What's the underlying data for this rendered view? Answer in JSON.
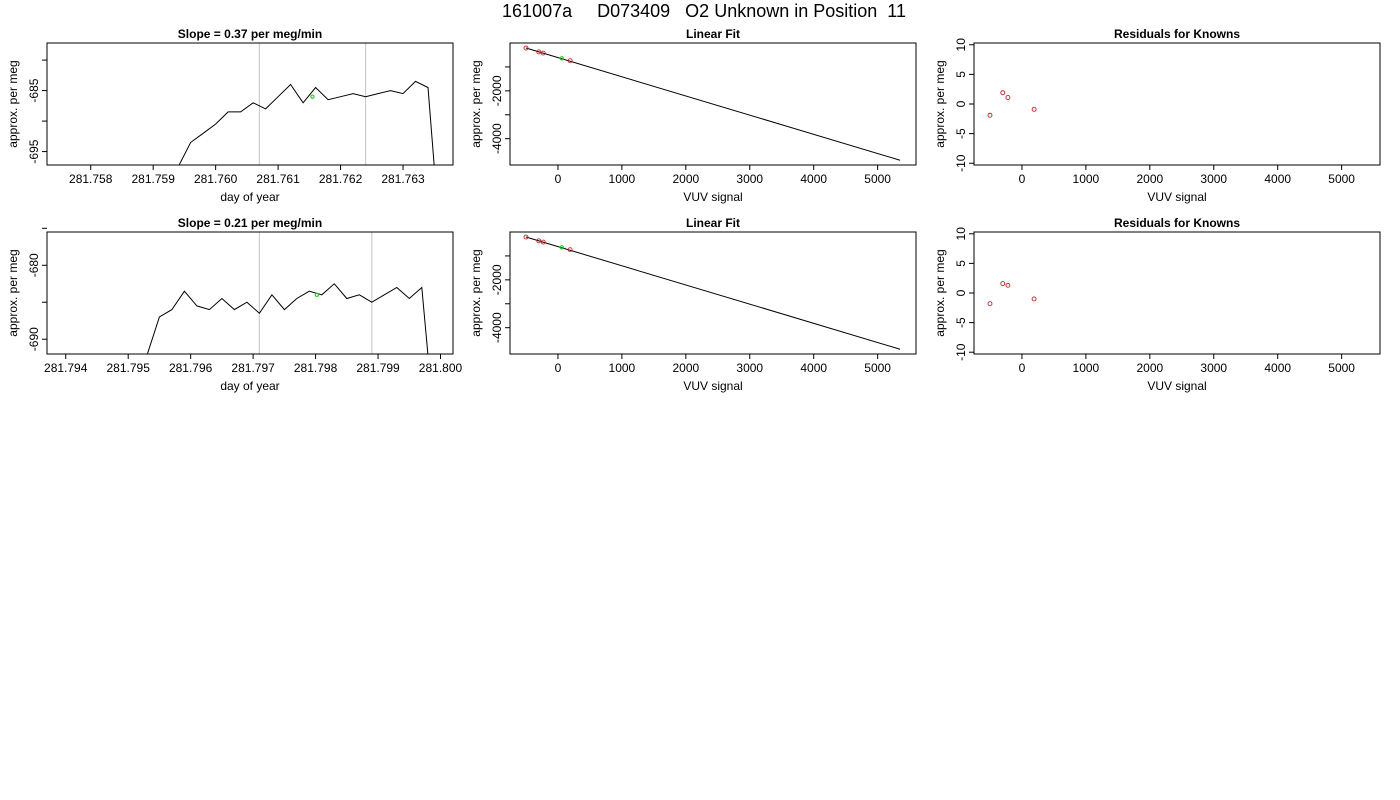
{
  "figure_title": "161007a     D073409   O2 Unknown in Position  11",
  "colors": {
    "series": "#000000",
    "marker": "#cc2222",
    "unknown": "#22cc22",
    "vline": "#cccccc",
    "axis": "#000000"
  },
  "chart_data": [
    {
      "type": "line",
      "title": "Slope =  0.37  per meg/min",
      "xlabel": "day of year",
      "ylabel": "approx. per meg",
      "xlim": [
        281.7573,
        281.7638
      ],
      "ylim": [
        -697.2,
        -677.2
      ],
      "xticks": [
        "281.758",
        "281.759",
        "281.760",
        "281.761",
        "281.762",
        "281.763"
      ],
      "xtick_values": [
        281.758,
        281.759,
        281.76,
        281.761,
        281.762,
        281.763
      ],
      "yticks": [
        "-695",
        "-685"
      ],
      "ytick_values": [
        -695,
        -685
      ],
      "minor_yticks": [
        -690,
        -680
      ],
      "vlines": [
        281.7607,
        281.7624
      ],
      "series": {
        "x": [
          281.7594,
          281.7596,
          281.7598,
          281.76,
          281.7602,
          281.7604,
          281.7606,
          281.7608,
          281.761,
          281.7612,
          281.7614,
          281.7616,
          281.7618,
          281.762,
          281.7622,
          281.7624,
          281.7626,
          281.7628,
          281.763,
          281.7632,
          281.7634,
          281.7635
        ],
        "y": [
          -697.5,
          -693.5,
          -692.0,
          -690.5,
          -688.5,
          -688.5,
          -687.0,
          -688.0,
          -686.0,
          -684.0,
          -687.0,
          -684.5,
          -686.5,
          -686.0,
          -685.5,
          -686.0,
          -685.5,
          -685.0,
          -685.5,
          -683.5,
          -684.5,
          -697.5
        ]
      },
      "unknown_point": {
        "x": 281.76155,
        "y": -686.0
      }
    },
    {
      "type": "scatter",
      "title": "Linear Fit",
      "xlabel": "VUV signal",
      "ylabel": "approx. per meg",
      "xlim": [
        -750,
        5600
      ],
      "ylim": [
        -5100,
        0
      ],
      "xticks": [
        "0",
        "1000",
        "2000",
        "3000",
        "4000",
        "5000"
      ],
      "xtick_values": [
        0,
        1000,
        2000,
        3000,
        4000,
        5000
      ],
      "yticks": [
        "-4000",
        "-2000"
      ],
      "ytick_values": [
        -4000,
        -2000
      ],
      "minor_yticks": [
        -3000,
        -1000
      ],
      "fit_line": {
        "x": [
          -500,
          5350
        ],
        "y": [
          -210,
          -4900
        ]
      },
      "knowns": {
        "x": [
          -500,
          -300,
          -230,
          190
        ],
        "y": [
          -210,
          -370,
          -420,
          -740
        ]
      },
      "unknown_point": {
        "x": 60,
        "y": -640
      }
    },
    {
      "type": "scatter",
      "title": "Residuals for Knowns",
      "xlabel": "VUV signal",
      "ylabel": "approx. per meg",
      "xlim": [
        -750,
        5600
      ],
      "ylim": [
        -10.3,
        10.3
      ],
      "xticks": [
        "0",
        "1000",
        "2000",
        "3000",
        "4000",
        "5000"
      ],
      "xtick_values": [
        0,
        1000,
        2000,
        3000,
        4000,
        5000
      ],
      "yticks": [
        "-10",
        "-5",
        "0",
        "5",
        "10"
      ],
      "ytick_values": [
        -10,
        -5,
        0,
        5,
        10
      ],
      "knowns": {
        "x": [
          -500,
          -300,
          -220,
          190
        ],
        "y": [
          -1.9,
          1.9,
          1.1,
          -0.9
        ]
      }
    },
    {
      "type": "line",
      "title": "Slope =  0.21  per meg/min",
      "xlabel": "day of year",
      "ylabel": "approx. per meg",
      "xlim": [
        281.7937,
        281.8002
      ],
      "ylim": [
        -692.0,
        -675.5
      ],
      "xticks": [
        "281.794",
        "281.795",
        "281.796",
        "281.797",
        "281.798",
        "281.799",
        "281.800"
      ],
      "xtick_values": [
        281.794,
        281.795,
        281.796,
        281.797,
        281.798,
        281.799,
        281.8
      ],
      "yticks": [
        "-690",
        "-680"
      ],
      "ytick_values": [
        -690,
        -680
      ],
      "minor_yticks": [
        -685,
        -675
      ],
      "vlines": [
        281.7971,
        281.7989
      ],
      "series": {
        "x": [
          281.7953,
          281.7955,
          281.7957,
          281.7959,
          281.7961,
          281.7963,
          281.7965,
          281.7967,
          281.7969,
          281.7971,
          281.7973,
          281.7975,
          281.7977,
          281.7979,
          281.7981,
          281.7983,
          281.7985,
          281.7987,
          281.7989,
          281.7991,
          281.7993,
          281.7995,
          281.7997,
          281.7998
        ],
        "y": [
          -692.2,
          -687.0,
          -686.0,
          -683.5,
          -685.5,
          -686.0,
          -684.5,
          -686.0,
          -685.0,
          -686.5,
          -684.0,
          -686.0,
          -684.5,
          -683.5,
          -684.0,
          -682.5,
          -684.5,
          -684.0,
          -685.0,
          -684.0,
          -683.0,
          -684.5,
          -683.0,
          -692.2
        ]
      },
      "unknown_point": {
        "x": 281.79802,
        "y": -684.0
      }
    },
    {
      "type": "scatter",
      "title": "Linear Fit",
      "xlabel": "VUV signal",
      "ylabel": "approx. per meg",
      "xlim": [
        -750,
        5600
      ],
      "ylim": [
        -5100,
        0
      ],
      "xticks": [
        "0",
        "1000",
        "2000",
        "3000",
        "4000",
        "5000"
      ],
      "xtick_values": [
        0,
        1000,
        2000,
        3000,
        4000,
        5000
      ],
      "yticks": [
        "-4000",
        "-2000"
      ],
      "ytick_values": [
        -4000,
        -2000
      ],
      "minor_yticks": [
        -3000,
        -1000
      ],
      "fit_line": {
        "x": [
          -500,
          5350
        ],
        "y": [
          -210,
          -4900
        ]
      },
      "knowns": {
        "x": [
          -500,
          -300,
          -230,
          190
        ],
        "y": [
          -210,
          -370,
          -420,
          -740
        ]
      },
      "unknown_point": {
        "x": 60,
        "y": -640
      }
    },
    {
      "type": "scatter",
      "title": "Residuals for Knowns",
      "xlabel": "VUV signal",
      "ylabel": "approx. per meg",
      "xlim": [
        -750,
        5600
      ],
      "ylim": [
        -10.3,
        10.3
      ],
      "xticks": [
        "0",
        "1000",
        "2000",
        "3000",
        "4000",
        "5000"
      ],
      "xtick_values": [
        0,
        1000,
        2000,
        3000,
        4000,
        5000
      ],
      "yticks": [
        "-10",
        "-5",
        "0",
        "5",
        "10"
      ],
      "ytick_values": [
        -10,
        -5,
        0,
        5,
        10
      ],
      "knowns": {
        "x": [
          -500,
          -300,
          -220,
          190
        ],
        "y": [
          -1.8,
          1.6,
          1.3,
          -1.0
        ]
      }
    }
  ]
}
